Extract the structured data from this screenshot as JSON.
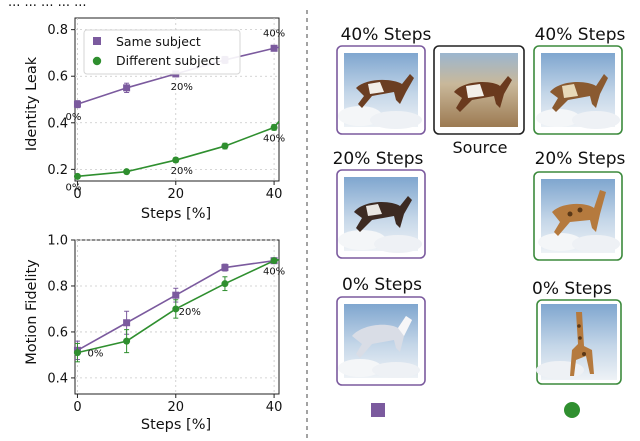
{
  "header_text": "...  ...  ...  ...  ...",
  "chart_data": [
    {
      "type": "line",
      "x": [
        0,
        10,
        20,
        30,
        40
      ],
      "xlabel": "Steps [%]",
      "ylabel": "Identity Leak",
      "xlim": [
        -0.5,
        41
      ],
      "ylim": [
        0.15,
        0.85
      ],
      "xticks": [
        "0",
        "20",
        "40"
      ],
      "yticks": [
        "0.2",
        "0.4",
        "0.6",
        "0.8"
      ],
      "grid": true,
      "legend_position": "upper-left",
      "series": [
        {
          "name": "Same subject",
          "color": "#7b5a9e",
          "marker": "square",
          "values": [
            0.48,
            0.55,
            0.61,
            0.67,
            0.72
          ],
          "errors": [
            0.015,
            0.02,
            0.012,
            0.015,
            0.012
          ]
        },
        {
          "name": "Different subject",
          "color": "#2f8f2f",
          "marker": "circle",
          "values": [
            0.17,
            0.19,
            0.24,
            0.3,
            0.38
          ],
          "errors": [
            0.008,
            0.008,
            0.01,
            0.012,
            0.012
          ]
        }
      ],
      "annotations": [
        {
          "text": "0%",
          "x": 0,
          "y": 0.48,
          "series": 0
        },
        {
          "text": "20%",
          "x": 20,
          "y": 0.61,
          "series": 0
        },
        {
          "text": "40%",
          "x": 40,
          "y": 0.72,
          "series": 0
        },
        {
          "text": "0%",
          "x": 0,
          "y": 0.17,
          "series": 1
        },
        {
          "text": "20%",
          "x": 20,
          "y": 0.24,
          "series": 1
        },
        {
          "text": "40%",
          "x": 40,
          "y": 0.38,
          "series": 1
        }
      ]
    },
    {
      "type": "line",
      "x": [
        0,
        10,
        20,
        30,
        40
      ],
      "xlabel": "Steps [%]",
      "ylabel": "Motion Fidelity",
      "xlim": [
        -0.5,
        41
      ],
      "ylim": [
        0.33,
        1.0
      ],
      "xticks": [
        "0",
        "20",
        "40"
      ],
      "yticks": [
        "0.4",
        "0.6",
        "0.8",
        "1.0"
      ],
      "grid": true,
      "series": [
        {
          "name": "Same subject",
          "color": "#7b5a9e",
          "marker": "square",
          "values": [
            0.52,
            0.64,
            0.76,
            0.88,
            0.91
          ],
          "errors": [
            0.04,
            0.05,
            0.03,
            0.015,
            0.01
          ]
        },
        {
          "name": "Different subject",
          "color": "#2f8f2f",
          "marker": "circle",
          "values": [
            0.51,
            0.56,
            0.7,
            0.81,
            0.91
          ],
          "errors": [
            0.04,
            0.05,
            0.04,
            0.03,
            0.01
          ]
        }
      ],
      "annotations": [
        {
          "text": "0%",
          "x": 0,
          "y": 0.52,
          "series": 1
        },
        {
          "text": "20%",
          "x": 20,
          "y": 0.76,
          "series": 1
        },
        {
          "text": "40%",
          "x": 40,
          "y": 0.91,
          "series": 1
        }
      ]
    }
  ],
  "panel": {
    "left_col": [
      "40% Steps",
      "20% Steps",
      "0% Steps"
    ],
    "right_col": [
      "40% Steps",
      "20% Steps",
      "0% Steps"
    ],
    "source_label": "Source",
    "colors": {
      "same": "#7b5a9e",
      "different": "#2f8f2f",
      "source": "#222222"
    }
  }
}
